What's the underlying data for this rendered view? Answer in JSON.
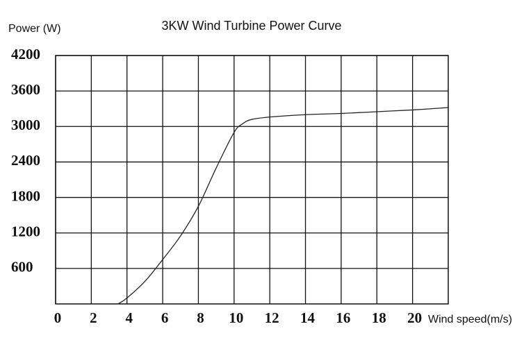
{
  "chart_data": {
    "type": "line",
    "title": "3KW Wind Turbine Power Curve",
    "y_label": "Power (W)",
    "x_label": "Wind speed(m/s)",
    "x": [
      3.5,
      4,
      5,
      6,
      7,
      8,
      9,
      10,
      10.5,
      11,
      12,
      14,
      16,
      18,
      20,
      22
    ],
    "values": [
      0,
      100,
      380,
      750,
      1150,
      1650,
      2300,
      2900,
      3050,
      3120,
      3160,
      3200,
      3220,
      3250,
      3280,
      3320
    ],
    "color": "#222222",
    "xlim": [
      0,
      22
    ],
    "xticks": [
      0,
      2,
      4,
      6,
      8,
      10,
      12,
      14,
      16,
      18,
      20
    ],
    "ylim": [
      0,
      4200
    ],
    "yticks": [
      600,
      1200,
      1800,
      2400,
      3000,
      3600,
      4200
    ],
    "grid": true
  }
}
